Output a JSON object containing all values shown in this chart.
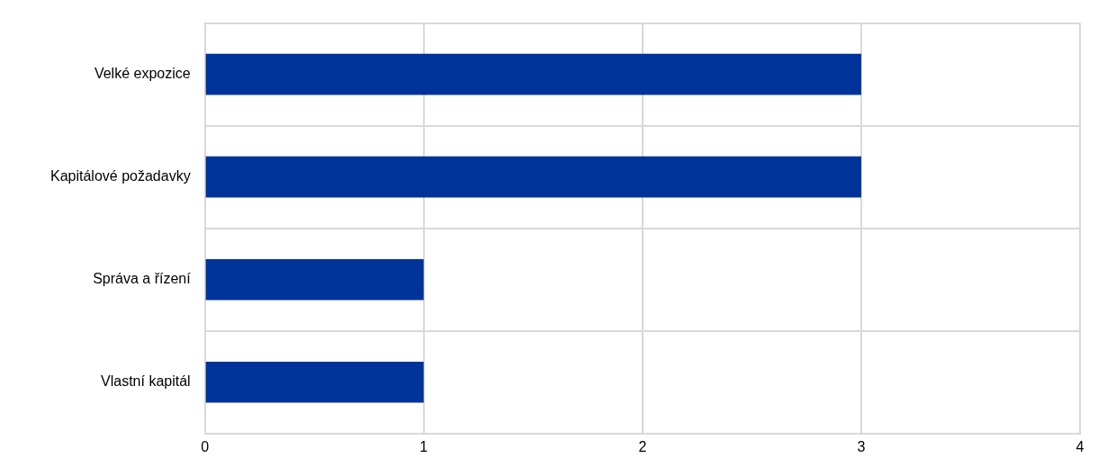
{
  "chart_data": {
    "type": "bar",
    "orientation": "horizontal",
    "categories": [
      "Velké expozice",
      "Kapitálové požadavky",
      "Správa a řízení",
      "Vlastní kapitál"
    ],
    "values": [
      3,
      3,
      1,
      1
    ],
    "color": "#003399",
    "xlim": [
      0,
      4
    ],
    "xticks": [
      0,
      1,
      2,
      3,
      4
    ],
    "grid": true
  }
}
